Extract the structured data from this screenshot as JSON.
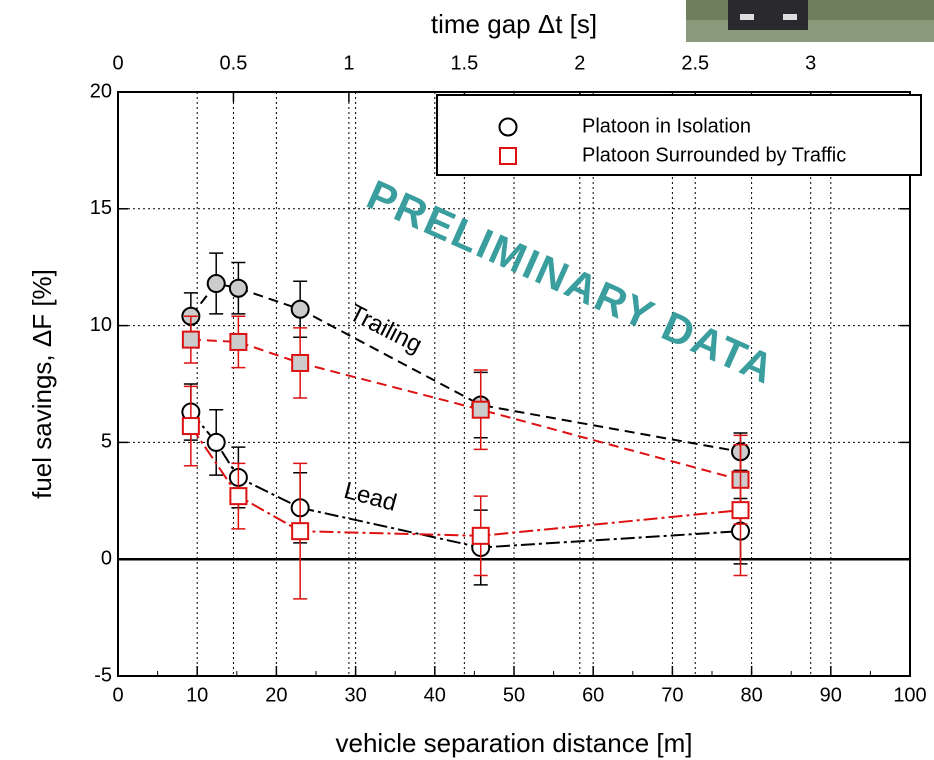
{
  "chart_data": {
    "type": "errorbar-line",
    "xlabel": "vehicle separation distance [m]",
    "ylabel": "fuel savings, ΔF [%]",
    "x2label": "time gap Δt [s]",
    "xlim": [
      0,
      100
    ],
    "xticks": [
      0,
      10,
      20,
      30,
      40,
      50,
      60,
      70,
      80,
      90,
      100
    ],
    "ylim": [
      -5,
      20
    ],
    "yticks": [
      -5,
      0,
      5,
      10,
      15,
      20
    ],
    "x2lim": [
      0,
      3.43
    ],
    "x2ticks": [
      0,
      0.5,
      1,
      1.5,
      2,
      2.5,
      3
    ],
    "grid": true,
    "reference_line": 0,
    "legend": "upper right",
    "annotations": {
      "trailing": "Trailing",
      "lead": "Lead",
      "watermark": "PRELIMINARY DATA"
    },
    "series": [
      {
        "name": "Platoon in Isolation",
        "color": "#000000",
        "marker": "circle",
        "trailing": {
          "x": [
            9.2,
            12.4,
            15.2,
            23,
            45.8,
            78.6
          ],
          "values": [
            10.4,
            11.8,
            11.6,
            10.7,
            6.6,
            4.6
          ],
          "errors": [
            1.0,
            1.3,
            1.1,
            1.2,
            1.4,
            0.8
          ]
        },
        "lead": {
          "x": [
            9.2,
            12.4,
            15.2,
            23,
            45.8,
            78.6
          ],
          "values": [
            6.3,
            5.0,
            3.5,
            2.2,
            0.5,
            1.2
          ],
          "errors": [
            1.2,
            1.4,
            1.3,
            1.5,
            1.6,
            1.4
          ]
        }
      },
      {
        "name": "Platoon Surrounded by Traffic",
        "color": "#dd1111",
        "marker": "square",
        "trailing": {
          "x": [
            9.2,
            15.2,
            23,
            45.8,
            78.6
          ],
          "values": [
            9.4,
            9.3,
            8.4,
            6.4,
            3.4
          ],
          "errors": [
            1.0,
            1.1,
            1.5,
            1.7,
            1.9
          ]
        },
        "lead": {
          "x": [
            9.2,
            15.2,
            23,
            45.8,
            78.6
          ],
          "values": [
            5.7,
            2.7,
            1.2,
            1.0,
            2.1
          ],
          "errors": [
            1.7,
            1.4,
            2.9,
            1.7,
            2.8
          ]
        }
      }
    ]
  }
}
